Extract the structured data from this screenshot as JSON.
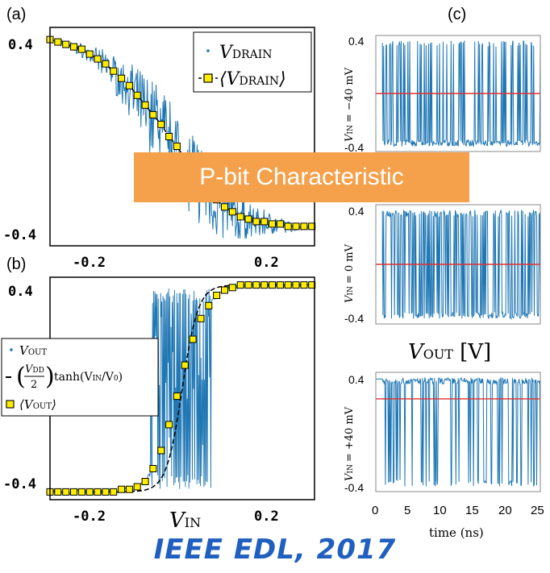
{
  "chart_data": [
    {
      "id": "a",
      "type": "scatter",
      "panel_label": "(a)",
      "xlim": [
        -0.25,
        0.25
      ],
      "ylim": [
        -0.45,
        0.45
      ],
      "xticks": [
        "-0.2",
        "0.2"
      ],
      "xtick_values": [
        -0.2,
        0.2
      ],
      "yticks": [
        "0.4",
        "-0.4"
      ],
      "ytick_values": [
        0.4,
        -0.4
      ],
      "legend_position": "top-right",
      "series": [
        {
          "name": "V_DRAIN",
          "legend_main": "V",
          "legend_sub": "DRAIN",
          "color": "#1f77b4",
          "style": "dots"
        },
        {
          "name": "⟨V_DRAIN⟩",
          "legend_main": "⟨V",
          "legend_sub": "DRAIN",
          "legend_close": "⟩",
          "color": "#000000",
          "marker_color": "#ffee00",
          "style": "dashed-squares",
          "x": [
            -0.25,
            -0.235,
            -0.22,
            -0.205,
            -0.19,
            -0.175,
            -0.16,
            -0.145,
            -0.13,
            -0.115,
            -0.1,
            -0.085,
            -0.07,
            -0.055,
            -0.04,
            -0.025,
            -0.01,
            0.005,
            0.02,
            0.035,
            0.05,
            0.065,
            0.08,
            0.095,
            0.11,
            0.125,
            0.14,
            0.155,
            0.17,
            0.185,
            0.2,
            0.215,
            0.23,
            0.245
          ],
          "y": [
            0.4,
            0.39,
            0.38,
            0.37,
            0.36,
            0.34,
            0.32,
            0.3,
            0.27,
            0.24,
            0.21,
            0.17,
            0.13,
            0.09,
            0.05,
            0.0,
            -0.04,
            -0.09,
            -0.13,
            -0.18,
            -0.22,
            -0.26,
            -0.29,
            -0.31,
            -0.33,
            -0.34,
            -0.35,
            -0.35,
            -0.36,
            -0.36,
            -0.37,
            -0.37,
            -0.37,
            -0.37
          ]
        }
      ]
    },
    {
      "id": "b",
      "type": "scatter",
      "panel_label": "(b)",
      "xlabel_main": "V",
      "xlabel_sub": "IN",
      "xlim": [
        -0.25,
        0.25
      ],
      "ylim": [
        -0.43,
        0.43
      ],
      "xticks": [
        "-0.2",
        "0.2"
      ],
      "xtick_values": [
        -0.2,
        0.2
      ],
      "yticks": [
        "0.4",
        "-0.4"
      ],
      "ytick_values": [
        0.4,
        -0.4
      ],
      "legend_position": "left",
      "series": [
        {
          "name": "V_OUT",
          "legend_main": "V",
          "legend_sub": "OUT",
          "color": "#1f77b4",
          "style": "dots"
        },
        {
          "name": "-(V_DD/2) tanh(V_IN/V_0)",
          "legend_text": "tanh(V_IN/V_0)",
          "color": "#000000",
          "style": "dashed"
        },
        {
          "name": "⟨V_OUT⟩",
          "legend_main": "⟨V",
          "legend_sub": "OUT",
          "legend_close": "⟩",
          "color": "#000000",
          "marker_color": "#ffee00",
          "style": "squares",
          "x": [
            -0.25,
            -0.235,
            -0.22,
            -0.205,
            -0.19,
            -0.175,
            -0.16,
            -0.145,
            -0.13,
            -0.115,
            -0.1,
            -0.085,
            -0.07,
            -0.055,
            -0.04,
            -0.025,
            -0.01,
            0.005,
            0.02,
            0.035,
            0.05,
            0.065,
            0.08,
            0.095,
            0.11,
            0.125,
            0.14,
            0.155,
            0.17,
            0.185,
            0.2,
            0.215,
            0.23,
            0.245
          ],
          "y": [
            -0.4,
            -0.4,
            -0.4,
            -0.4,
            -0.4,
            -0.4,
            -0.4,
            -0.4,
            -0.4,
            -0.39,
            -0.39,
            -0.38,
            -0.36,
            -0.31,
            -0.24,
            -0.14,
            -0.03,
            0.09,
            0.19,
            0.27,
            0.32,
            0.36,
            0.38,
            0.39,
            0.4,
            0.4,
            0.4,
            0.4,
            0.4,
            0.4,
            0.4,
            0.4,
            0.4,
            0.4
          ]
        }
      ],
      "tanh_legend": {
        "vdd": "V",
        "vdd_sub": "DD",
        "two": "2",
        "func": "tanh(V",
        "func_sub": "IN",
        "func_mid": "/V",
        "func_sub2": "0",
        "func_close": ")"
      }
    },
    {
      "id": "c",
      "type": "line",
      "panel_label": "(c)",
      "ylabel_main": "V",
      "ylabel_sub": "OUT",
      "ylabel_unit": "[V]",
      "xlabel": "time (ns)",
      "xlim": [
        0,
        25
      ],
      "xticks": [
        "0",
        "5",
        "10",
        "15",
        "20",
        "25"
      ],
      "xtick_values": [
        0,
        5,
        10,
        15,
        20,
        25
      ],
      "line_color": "#1f77b4",
      "mean_color": "#e03030",
      "subplots": [
        {
          "label_prefix": "V",
          "label_sub": "IN",
          "label_value": "= −40 mV",
          "ytick_top": "0.4",
          "ytick_bottom": "-0.4",
          "mean": 0.0,
          "high_prob": 0.28
        },
        {
          "label_prefix": "V",
          "label_sub": "IN",
          "label_value": "= 0 mV",
          "ytick_top": "0.4",
          "ytick_bottom": "-0.4",
          "mean": 0.0,
          "high_prob": 0.5
        },
        {
          "label_prefix": "V",
          "label_sub": "IN",
          "label_value": "= +40 mV",
          "ytick_top": "0.4",
          "ytick_bottom": "-0.4",
          "mean": 0.25,
          "high_prob": 0.75
        }
      ]
    }
  ],
  "banner": {
    "text": "P-bit Characteristic",
    "color": "#f5a04a"
  },
  "citation": {
    "text": "IEEE EDL, 2017",
    "color": "#1f5fbf"
  }
}
